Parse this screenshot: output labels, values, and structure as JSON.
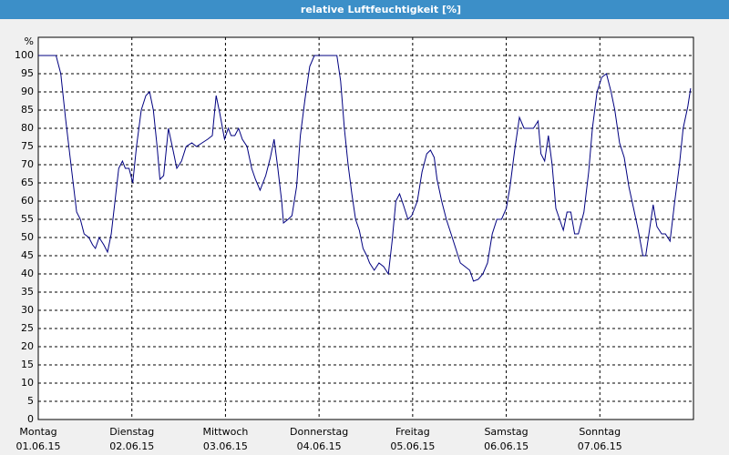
{
  "chart_data": {
    "type": "line",
    "title": "relative Luftfeuchtigkeit [%]",
    "y_unit": "%",
    "x": [
      0,
      0.19,
      0.24,
      0.29,
      0.35,
      0.41,
      0.45,
      0.49,
      0.54,
      0.58,
      0.61,
      0.65,
      0.7,
      0.74,
      0.78,
      0.82,
      0.86,
      0.9,
      0.93,
      0.97,
      1.01,
      1.05,
      1.1,
      1.15,
      1.19,
      1.23,
      1.27,
      1.3,
      1.34,
      1.39,
      1.44,
      1.48,
      1.53,
      1.58,
      1.64,
      1.69,
      1.75,
      1.81,
      1.86,
      1.9,
      1.94,
      1.99,
      2.03,
      2.06,
      2.1,
      2.14,
      2.18,
      2.23,
      2.28,
      2.32,
      2.37,
      2.43,
      2.48,
      2.52,
      2.56,
      2.6,
      2.62,
      2.67,
      2.71,
      2.76,
      2.8,
      2.85,
      2.9,
      2.95,
      3.0,
      3.1,
      3.19,
      3.23,
      3.27,
      3.31,
      3.35,
      3.39,
      3.43,
      3.47,
      3.51,
      3.54,
      3.59,
      3.64,
      3.69,
      3.74,
      3.78,
      3.82,
      3.86,
      3.9,
      3.95,
      3.99,
      4.05,
      4.1,
      4.15,
      4.19,
      4.23,
      4.26,
      4.31,
      4.36,
      4.41,
      4.46,
      4.51,
      4.56,
      4.61,
      4.65,
      4.7,
      4.75,
      4.8,
      4.85,
      4.9,
      4.95,
      5.0,
      5.04,
      5.09,
      5.14,
      5.19,
      5.24,
      5.29,
      5.34,
      5.37,
      5.41,
      5.45,
      5.49,
      5.53,
      5.57,
      5.61,
      5.65,
      5.69,
      5.73,
      5.77,
      5.83,
      5.88,
      5.92,
      5.97,
      6.02,
      6.07,
      6.12,
      6.16,
      6.21,
      6.26,
      6.31,
      6.36,
      6.41,
      6.46,
      6.49,
      6.53,
      6.57,
      6.61,
      6.66,
      6.7,
      6.75,
      6.8,
      6.85,
      6.89,
      6.94,
      6.97
    ],
    "series": [
      {
        "name": "relative Luftfeuchtigkeit",
        "color": "#000080",
        "values": [
          100,
          100,
          95,
          83,
          70,
          57,
          55,
          51,
          50,
          48,
          47,
          50,
          48,
          46,
          51,
          60,
          69,
          71,
          69,
          69,
          65,
          75,
          85,
          89,
          90,
          85,
          75,
          66,
          67,
          80,
          74,
          69,
          71,
          75,
          76,
          75,
          76,
          77,
          78,
          89,
          84,
          77,
          80,
          78,
          78,
          80,
          77,
          75,
          69,
          66,
          63,
          67,
          72,
          77,
          69,
          60,
          54,
          55,
          56,
          64,
          78,
          88,
          97,
          100,
          100,
          100,
          100,
          93,
          80,
          70,
          62,
          55,
          52,
          47,
          45,
          43,
          41,
          43,
          42,
          40,
          49,
          60,
          62,
          59,
          55,
          56,
          60,
          68,
          73,
          74,
          72,
          66,
          60,
          55,
          51,
          47,
          43,
          42,
          41,
          38,
          38.5,
          40,
          43,
          51,
          55,
          55,
          58,
          64,
          74,
          83,
          80,
          80,
          80,
          82,
          73,
          71,
          78,
          70,
          58,
          55,
          52,
          57,
          57,
          51,
          51,
          57,
          68,
          80,
          90,
          94,
          95,
          90,
          85,
          76,
          72,
          64,
          58,
          52,
          45,
          45,
          52,
          59,
          53,
          51,
          51,
          49,
          60,
          70,
          80,
          86,
          91
        ]
      }
    ],
    "xlim": [
      0,
      7
    ],
    "xticks": [
      {
        "value": 0,
        "label": "Montag",
        "date": "01.06.15"
      },
      {
        "value": 1,
        "label": "Dienstag",
        "date": "02.06.15"
      },
      {
        "value": 2,
        "label": "Mittwoch",
        "date": "03.06.15"
      },
      {
        "value": 3,
        "label": "Donnerstag",
        "date": "04.06.15"
      },
      {
        "value": 4,
        "label": "Freitag",
        "date": "05.06.15"
      },
      {
        "value": 5,
        "label": "Samstag",
        "date": "06.06.15"
      },
      {
        "value": 6,
        "label": "Sonntag",
        "date": "07.06.15"
      }
    ],
    "ylim": [
      0,
      100
    ],
    "yticks": [
      0,
      5,
      10,
      15,
      20,
      25,
      30,
      35,
      40,
      45,
      50,
      55,
      60,
      65,
      70,
      75,
      80,
      85,
      90,
      95,
      100
    ],
    "grid": true
  }
}
